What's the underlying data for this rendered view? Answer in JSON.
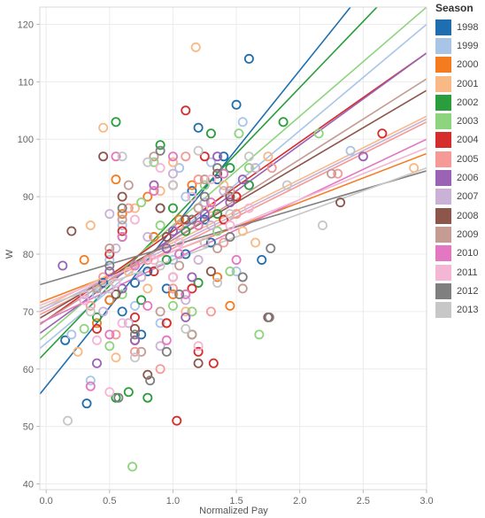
{
  "chart_data": {
    "type": "scatter",
    "xlabel": "Normalized Pay",
    "ylabel": "W",
    "xlim": [
      -0.05,
      3.0
    ],
    "ylim": [
      39,
      123
    ],
    "x_ticks": [
      "0.0",
      "0.5",
      "1.0",
      "1.5",
      "2.0",
      "2.5",
      "3.0"
    ],
    "y_ticks": [
      "40",
      "50",
      "60",
      "70",
      "80",
      "90",
      "100",
      "110",
      "120"
    ],
    "grid": true,
    "legend_title": "Season",
    "legend_position": "right",
    "series": [
      {
        "name": "1998",
        "color": "#1f6fb0",
        "trend": {
          "intercept": 57.0,
          "slope": 27.5
        },
        "points": [
          [
            0.15,
            65
          ],
          [
            0.32,
            54
          ],
          [
            1.6,
            114
          ],
          [
            1.5,
            106
          ],
          [
            1.2,
            102
          ],
          [
            1.4,
            97
          ],
          [
            0.9,
            88
          ],
          [
            1.1,
            80
          ],
          [
            0.7,
            75
          ],
          [
            1.3,
            82
          ],
          [
            0.5,
            72
          ],
          [
            0.8,
            77
          ],
          [
            1.05,
            85
          ],
          [
            1.35,
            93
          ],
          [
            1.7,
            79
          ],
          [
            0.6,
            70
          ],
          [
            0.95,
            74
          ],
          [
            1.15,
            91
          ],
          [
            0.45,
            75
          ],
          [
            1.25,
            86
          ],
          [
            0.75,
            66
          ]
        ]
      },
      {
        "name": "1999",
        "color": "#a8c5e8",
        "trend": {
          "intercept": 64.5,
          "slope": 18.5
        },
        "points": [
          [
            0.2,
            66
          ],
          [
            0.35,
            58
          ],
          [
            1.55,
            103
          ],
          [
            1.45,
            95
          ],
          [
            1.05,
            95
          ],
          [
            0.85,
            83
          ],
          [
            1.2,
            88
          ],
          [
            0.5,
            79
          ],
          [
            0.7,
            71
          ],
          [
            1.3,
            96
          ],
          [
            1.6,
            92
          ],
          [
            0.9,
            68
          ],
          [
            1.1,
            90
          ],
          [
            1.5,
            77
          ],
          [
            2.4,
            98
          ],
          [
            0.6,
            85
          ],
          [
            1.0,
            79
          ],
          [
            0.4,
            73
          ]
        ]
      },
      {
        "name": "2000",
        "color": "#f47c1e",
        "trend": {
          "intercept": 72.0,
          "slope": 8.5
        },
        "points": [
          [
            0.3,
            79
          ],
          [
            0.5,
            72
          ],
          [
            0.55,
            93
          ],
          [
            0.85,
            83
          ],
          [
            1.05,
            86
          ],
          [
            1.25,
            82
          ],
          [
            1.35,
            76
          ],
          [
            0.7,
            65
          ],
          [
            1.5,
            90
          ],
          [
            0.95,
            68
          ],
          [
            1.15,
            92
          ],
          [
            0.6,
            87
          ],
          [
            1.45,
            71
          ],
          [
            0.4,
            68
          ],
          [
            1.0,
            73
          ],
          [
            0.8,
            90
          ],
          [
            1.2,
            85
          ]
        ]
      },
      {
        "name": "2001",
        "color": "#f9b984",
        "trend": {
          "intercept": 71.0,
          "slope": 11.0
        },
        "points": [
          [
            0.45,
            102
          ],
          [
            1.18,
            116
          ],
          [
            1.75,
            97
          ],
          [
            2.9,
            95
          ],
          [
            0.35,
            85
          ],
          [
            0.65,
            77
          ],
          [
            0.9,
            91
          ],
          [
            1.1,
            70
          ],
          [
            1.3,
            88
          ],
          [
            0.55,
            62
          ],
          [
            1.55,
            84
          ],
          [
            0.8,
            74
          ],
          [
            1.0,
            96
          ],
          [
            1.4,
            92
          ],
          [
            0.25,
            63
          ],
          [
            1.65,
            82
          ],
          [
            0.7,
            88
          ]
        ]
      },
      {
        "name": "2002",
        "color": "#2a9d3c",
        "trend": {
          "intercept": 63.0,
          "slope": 23.0
        },
        "points": [
          [
            0.55,
            103
          ],
          [
            1.87,
            103
          ],
          [
            1.3,
            101
          ],
          [
            0.65,
            56
          ],
          [
            0.55,
            55
          ],
          [
            0.8,
            55
          ],
          [
            0.9,
            99
          ],
          [
            1.1,
            84
          ],
          [
            0.6,
            83
          ],
          [
            1.2,
            75
          ],
          [
            1.0,
            88
          ],
          [
            1.45,
            95
          ],
          [
            0.75,
            72
          ],
          [
            1.35,
            87
          ],
          [
            0.4,
            69
          ],
          [
            1.15,
            66
          ],
          [
            0.95,
            79
          ],
          [
            1.6,
            92
          ]
        ]
      },
      {
        "name": "2003",
        "color": "#8ed47e",
        "trend": {
          "intercept": 66.0,
          "slope": 19.0
        },
        "points": [
          [
            2.15,
            101
          ],
          [
            1.68,
            66
          ],
          [
            0.68,
            43
          ],
          [
            0.3,
            67
          ],
          [
            1.52,
            101
          ],
          [
            0.85,
            96
          ],
          [
            1.05,
            80
          ],
          [
            1.25,
            92
          ],
          [
            0.6,
            73
          ],
          [
            1.15,
            70
          ],
          [
            0.9,
            85
          ],
          [
            1.35,
            84
          ],
          [
            0.5,
            64
          ],
          [
            0.75,
            89
          ],
          [
            1.45,
            77
          ],
          [
            1.0,
            71
          ],
          [
            1.6,
            95
          ]
        ]
      },
      {
        "name": "2004",
        "color": "#d62c2c",
        "trend": {
          "intercept": 68.5,
          "slope": 15.5
        },
        "points": [
          [
            1.03,
            51
          ],
          [
            1.1,
            105
          ],
          [
            2.65,
            101
          ],
          [
            0.5,
            80
          ],
          [
            0.7,
            69
          ],
          [
            1.2,
            63
          ],
          [
            1.32,
            61
          ],
          [
            0.85,
            77
          ],
          [
            1.0,
            92
          ],
          [
            1.4,
            86
          ],
          [
            0.6,
            84
          ],
          [
            1.15,
            74
          ],
          [
            0.95,
            68
          ],
          [
            1.25,
            97
          ],
          [
            0.4,
            67
          ],
          [
            1.5,
            90
          ]
        ]
      },
      {
        "name": "2005",
        "color": "#f59a96",
        "trend": {
          "intercept": 70.0,
          "slope": 11.0
        },
        "points": [
          [
            0.55,
            66
          ],
          [
            1.78,
            95
          ],
          [
            2.3,
            94
          ],
          [
            0.9,
            60
          ],
          [
            1.1,
            97
          ],
          [
            1.3,
            70
          ],
          [
            0.65,
            88
          ],
          [
            0.8,
            79
          ],
          [
            1.0,
            74
          ],
          [
            1.2,
            93
          ],
          [
            0.45,
            76
          ],
          [
            1.5,
            87
          ],
          [
            0.7,
            63
          ],
          [
            1.4,
            82
          ],
          [
            0.35,
            71
          ],
          [
            1.05,
            85
          ]
        ]
      },
      {
        "name": "2006",
        "color": "#9a63b5",
        "trend": {
          "intercept": 67.0,
          "slope": 16.0
        },
        "points": [
          [
            0.13,
            78
          ],
          [
            0.5,
            77
          ],
          [
            2.5,
            97
          ],
          [
            0.4,
            61
          ],
          [
            0.7,
            65
          ],
          [
            1.0,
            84
          ],
          [
            1.25,
            87
          ],
          [
            0.85,
            92
          ],
          [
            1.1,
            69
          ],
          [
            1.35,
            97
          ],
          [
            0.6,
            74
          ],
          [
            0.95,
            81
          ],
          [
            1.45,
            89
          ],
          [
            0.3,
            72
          ],
          [
            1.15,
            76
          ],
          [
            1.55,
            93
          ]
        ]
      },
      {
        "name": "2007",
        "color": "#c9b2d6",
        "trend": {
          "intercept": 70.5,
          "slope": 11.0
        },
        "points": [
          [
            0.5,
            87
          ],
          [
            0.8,
            83
          ],
          [
            1.25,
            89
          ],
          [
            0.3,
            73
          ],
          [
            0.65,
            68
          ],
          [
            1.0,
            94
          ],
          [
            1.2,
            79
          ],
          [
            0.9,
            64
          ],
          [
            1.4,
            91
          ],
          [
            0.55,
            81
          ],
          [
            1.1,
            72
          ],
          [
            1.65,
            95
          ],
          [
            0.75,
            76
          ],
          [
            1.3,
            85
          ],
          [
            0.45,
            70
          ]
        ]
      },
      {
        "name": "2008",
        "color": "#8c564b",
        "trend": {
          "intercept": 69.5,
          "slope": 13.0
        },
        "points": [
          [
            0.2,
            84
          ],
          [
            2.32,
            89
          ],
          [
            0.45,
            97
          ],
          [
            0.6,
            90
          ],
          [
            0.9,
            88
          ],
          [
            1.1,
            86
          ],
          [
            1.3,
            77
          ],
          [
            0.8,
            59
          ],
          [
            0.7,
            67
          ],
          [
            1.0,
            76
          ],
          [
            1.2,
            61
          ],
          [
            1.45,
            90
          ],
          [
            0.55,
            73
          ],
          [
            0.95,
            83
          ],
          [
            1.35,
            94
          ],
          [
            1.75,
            69
          ]
        ]
      },
      {
        "name": "2009",
        "color": "#c49c94",
        "trend": {
          "intercept": 68.5,
          "slope": 14.0
        },
        "points": [
          [
            0.6,
            86
          ],
          [
            0.85,
            97
          ],
          [
            1.25,
            93
          ],
          [
            2.25,
            94
          ],
          [
            0.5,
            81
          ],
          [
            0.4,
            74
          ],
          [
            1.05,
            78
          ],
          [
            1.2,
            88
          ],
          [
            0.75,
            63
          ],
          [
            0.9,
            70
          ],
          [
            1.15,
            66
          ],
          [
            1.35,
            81
          ],
          [
            1.45,
            91
          ],
          [
            0.65,
            92
          ],
          [
            1.55,
            74
          ]
        ]
      },
      {
        "name": "2010",
        "color": "#e377c2",
        "trend": {
          "intercept": 68.5,
          "slope": 10.5
        },
        "points": [
          [
            0.55,
            97
          ],
          [
            0.35,
            57
          ],
          [
            1.0,
            97
          ],
          [
            0.85,
            91
          ],
          [
            1.2,
            85
          ],
          [
            0.5,
            66
          ],
          [
            0.7,
            78
          ],
          [
            1.1,
            73
          ],
          [
            1.4,
            94
          ],
          [
            0.95,
            65
          ],
          [
            1.3,
            89
          ],
          [
            0.6,
            83
          ],
          [
            1.5,
            79
          ],
          [
            0.8,
            71
          ],
          [
            1.05,
            80
          ]
        ]
      },
      {
        "name": "2011",
        "color": "#f5b6d6",
        "trend": {
          "intercept": 71.5,
          "slope": 9.0
        },
        "points": [
          [
            0.5,
            56
          ],
          [
            0.3,
            72
          ],
          [
            0.7,
            86
          ],
          [
            0.85,
            79
          ],
          [
            1.05,
            82
          ],
          [
            1.3,
            93
          ],
          [
            1.6,
            88
          ],
          [
            0.6,
            68
          ],
          [
            1.0,
            76
          ],
          [
            1.2,
            64
          ],
          [
            1.45,
            85
          ],
          [
            0.9,
            95
          ],
          [
            0.55,
            75
          ],
          [
            1.15,
            90
          ],
          [
            0.4,
            65
          ]
        ]
      },
      {
        "name": "2012",
        "color": "#7f7f7f",
        "trend": {
          "intercept": 75.0,
          "slope": 6.5
        },
        "points": [
          [
            0.57,
            55
          ],
          [
            0.82,
            58
          ],
          [
            1.77,
            81
          ],
          [
            1.76,
            69
          ],
          [
            0.9,
            98
          ],
          [
            1.15,
            86
          ],
          [
            1.35,
            95
          ],
          [
            0.7,
            66
          ],
          [
            0.5,
            78
          ],
          [
            1.05,
            73
          ],
          [
            1.25,
            90
          ],
          [
            0.95,
            63
          ],
          [
            1.45,
            83
          ],
          [
            0.6,
            88
          ],
          [
            1.55,
            76
          ]
        ]
      },
      {
        "name": "2013",
        "color": "#c7c7c7",
        "trend": {
          "intercept": 71.0,
          "slope": 8.0
        },
        "points": [
          [
            0.17,
            51
          ],
          [
            2.18,
            85
          ],
          [
            1.45,
            87
          ],
          [
            0.6,
            97
          ],
          [
            0.8,
            96
          ],
          [
            1.0,
            92
          ],
          [
            1.25,
            82
          ],
          [
            0.5,
            74
          ],
          [
            0.7,
            62
          ],
          [
            0.9,
            78
          ],
          [
            1.1,
            67
          ],
          [
            1.35,
            75
          ],
          [
            0.35,
            70
          ],
          [
            1.6,
            97
          ],
          [
            1.9,
            92
          ],
          [
            1.2,
            98
          ]
        ]
      }
    ]
  }
}
